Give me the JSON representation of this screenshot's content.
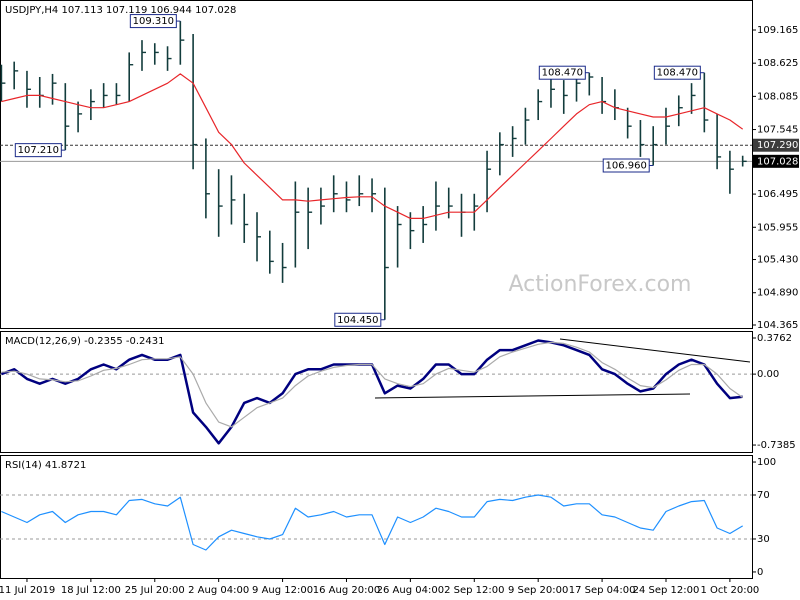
{
  "chart_data": [
    {
      "type": "ohlc",
      "title": "USDJPY,H4  107.113 107.119 106.944 107.028",
      "watermark": "ActionForex.com",
      "xlim": [
        -0.11,
        58.73
      ],
      "ylim": [
        104.316,
        109.653
      ],
      "yticks": [
        109.165,
        108.625,
        108.085,
        107.545,
        106.495,
        105.955,
        {
          "value": 105.43,
          "label": "105.430"
        },
        {
          "value": 104.89,
          "label": "104.890"
        },
        104.365
      ],
      "color": "#123c3c",
      "high": [
        108.6,
        108.65,
        108.5,
        108.4,
        108.45,
        108.3,
        108.0,
        108.2,
        108.3,
        108.3,
        108.8,
        109.0,
        108.95,
        108.9,
        109.31,
        109.1,
        107.4,
        106.9,
        106.8,
        106.5,
        106.2,
        105.9,
        105.7,
        106.7,
        106.6,
        106.6,
        106.8,
        106.7,
        106.8,
        106.75,
        106.6,
        106.3,
        106.2,
        106.3,
        106.7,
        106.6,
        106.5,
        106.5,
        107.2,
        107.5,
        107.6,
        107.9,
        108.2,
        108.4,
        108.35,
        108.45,
        108.47,
        108.4,
        108.2,
        107.9,
        107.7,
        107.6,
        107.9,
        108.1,
        108.3,
        108.47,
        107.8,
        107.2,
        107.119
      ],
      "low": [
        108.0,
        108.2,
        107.9,
        107.9,
        107.95,
        107.21,
        107.5,
        107.7,
        107.9,
        107.95,
        108.0,
        108.5,
        108.6,
        108.5,
        108.6,
        106.9,
        106.1,
        105.8,
        106.0,
        105.7,
        105.4,
        105.2,
        105.05,
        105.3,
        105.6,
        106.0,
        106.2,
        106.2,
        106.3,
        106.2,
        104.45,
        105.3,
        105.6,
        105.7,
        105.9,
        106.1,
        105.8,
        105.9,
        106.2,
        106.8,
        107.1,
        107.3,
        107.7,
        107.9,
        107.8,
        108.0,
        108.1,
        107.8,
        107.7,
        107.4,
        107.1,
        106.96,
        107.3,
        107.6,
        107.8,
        107.5,
        106.9,
        106.5,
        106.944
      ],
      "close": [
        108.3,
        108.5,
        108.2,
        108.1,
        108.3,
        107.6,
        107.8,
        108.0,
        108.1,
        108.1,
        108.6,
        108.8,
        108.8,
        108.7,
        109.0,
        107.3,
        106.5,
        106.3,
        106.4,
        106.0,
        105.8,
        105.4,
        105.3,
        106.2,
        106.2,
        106.3,
        106.5,
        106.4,
        106.5,
        106.5,
        105.3,
        106.0,
        105.9,
        106.0,
        106.3,
        106.3,
        106.2,
        106.3,
        106.9,
        107.3,
        107.4,
        107.7,
        108.0,
        108.2,
        108.1,
        108.3,
        108.4,
        108.0,
        107.9,
        107.6,
        107.3,
        107.3,
        107.6,
        107.9,
        108.1,
        107.7,
        107.1,
        106.9,
        107.028
      ],
      "series": [
        {
          "color": "#e8262a",
          "values": [
            108.0,
            108.05,
            108.1,
            108.1,
            108.05,
            108.0,
            107.95,
            107.9,
            107.9,
            107.95,
            108.0,
            108.1,
            108.2,
            108.3,
            108.45,
            108.3,
            107.9,
            107.5,
            107.3,
            107.0,
            106.8,
            106.6,
            106.4,
            106.4,
            106.38,
            106.4,
            106.42,
            106.44,
            106.45,
            106.45,
            106.3,
            106.2,
            106.1,
            106.1,
            106.15,
            106.2,
            106.2,
            106.2,
            106.4,
            106.6,
            106.8,
            107.0,
            107.2,
            107.4,
            107.6,
            107.8,
            107.95,
            108.0,
            107.9,
            107.85,
            107.8,
            107.75,
            107.75,
            107.8,
            107.85,
            107.9,
            107.8,
            107.7,
            107.55
          ]
        }
      ],
      "annotations": [
        {
          "x": 14,
          "value": 109.31,
          "label": "109.310"
        },
        {
          "x": 46,
          "value": 108.47,
          "label": "108.470"
        },
        {
          "x": 55,
          "value": 108.47,
          "label": "108.470"
        },
        {
          "x": 5,
          "value": 107.21,
          "label": "107.210"
        },
        {
          "x": 51,
          "value": 106.96,
          "label": "106.960"
        },
        {
          "x": 30,
          "value": 104.45,
          "label": "104.450"
        }
      ],
      "levels": [
        {
          "value": 107.29,
          "label": "107.290",
          "color": "#3c3c3c"
        },
        {
          "value": 107.028,
          "label": "107.028",
          "color": "#000000"
        }
      ]
    },
    {
      "type": "line",
      "title": "MACD(12,26,9) -0.2355 -0.2431",
      "xlim": [
        -0.11,
        58.73
      ],
      "ylim": [
        -0.811,
        0.449
      ],
      "yticks": [
        0.3762,
        {
          "value": 0,
          "label": "0.00"
        },
        -0.7385
      ],
      "levels": [
        0
      ],
      "series": [
        {
          "color": "#00007f",
          "values": [
            0.0,
            0.05,
            -0.05,
            -0.1,
            -0.05,
            -0.1,
            -0.05,
            0.05,
            0.1,
            0.05,
            0.15,
            0.2,
            0.15,
            0.15,
            0.2,
            -0.4,
            -0.55,
            -0.72,
            -0.55,
            -0.3,
            -0.25,
            -0.3,
            -0.2,
            0.0,
            0.05,
            0.05,
            0.1,
            0.1,
            0.1,
            0.1,
            -0.2,
            -0.12,
            -0.15,
            -0.05,
            0.1,
            0.1,
            0.0,
            0.0,
            0.15,
            0.25,
            0.25,
            0.3,
            0.35,
            0.33,
            0.3,
            0.25,
            0.2,
            0.05,
            0.0,
            -0.1,
            -0.18,
            -0.15,
            0.0,
            0.1,
            0.15,
            0.1,
            -0.1,
            -0.25,
            -0.2355
          ]
        },
        {
          "color": "#aaaaaa",
          "values": [
            0.02,
            0.03,
            0.0,
            -0.05,
            -0.06,
            -0.08,
            -0.07,
            -0.02,
            0.04,
            0.06,
            0.1,
            0.15,
            0.16,
            0.16,
            0.18,
            0.0,
            -0.3,
            -0.5,
            -0.55,
            -0.45,
            -0.35,
            -0.3,
            -0.25,
            -0.12,
            -0.02,
            0.03,
            0.07,
            0.09,
            0.1,
            0.1,
            -0.05,
            -0.1,
            -0.13,
            -0.1,
            0.0,
            0.06,
            0.04,
            0.02,
            0.08,
            0.18,
            0.23,
            0.27,
            0.31,
            0.33,
            0.32,
            0.28,
            0.23,
            0.12,
            0.05,
            -0.04,
            -0.12,
            -0.14,
            -0.06,
            0.04,
            0.1,
            0.1,
            0.0,
            -0.15,
            -0.2431
          ]
        }
      ]
    },
    {
      "type": "line",
      "title": "RSI(14) 41.8721",
      "xlim": [
        -0.11,
        58.73
      ],
      "ylim": [
        -5.5,
        106.4
      ],
      "yticks": [
        100,
        70,
        30,
        0
      ],
      "levels": [
        70,
        30
      ],
      "series": [
        {
          "color": "#1e90ff",
          "values": [
            55,
            50,
            45,
            52,
            55,
            45,
            52,
            55,
            55,
            52,
            65,
            66,
            62,
            60,
            68,
            25,
            20,
            32,
            38,
            35,
            32,
            30,
            34,
            58,
            50,
            52,
            55,
            50,
            52,
            52,
            25,
            50,
            45,
            50,
            58,
            55,
            50,
            50,
            64,
            66,
            65,
            68,
            70,
            68,
            60,
            62,
            62,
            52,
            50,
            45,
            40,
            38,
            55,
            60,
            64,
            65,
            40,
            35,
            41.8721
          ]
        }
      ],
      "xticks": [
        {
          "value": 2,
          "label": "11 Jul 2019"
        },
        {
          "value": 7,
          "label": "18 Jul 12:00"
        },
        {
          "value": 12,
          "label": "25 Jul 20:00"
        },
        {
          "value": 17,
          "label": "2 Aug 04:00"
        },
        {
          "value": 22,
          "label": "9 Aug 12:00"
        },
        {
          "value": 27,
          "label": "16 Aug 20:00"
        },
        {
          "value": 32,
          "label": "26 Aug 04:00"
        },
        {
          "value": 37,
          "label": "2 Sep 12:00"
        },
        {
          "value": 42,
          "label": "9 Sep 20:00"
        },
        {
          "value": 47,
          "label": "17 Sep 04:00"
        },
        {
          "value": 52,
          "label": "24 Sep 12:00"
        },
        {
          "value": 57,
          "label": "1 Oct 20:00"
        }
      ]
    }
  ]
}
